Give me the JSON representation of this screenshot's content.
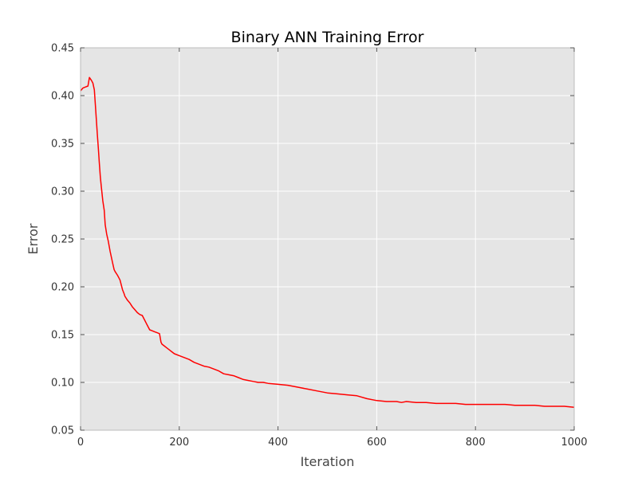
{
  "chart_data": {
    "type": "line",
    "title": "Binary ANN Training Error",
    "xlabel": "Iteration",
    "ylabel": "Error",
    "xlim": [
      0,
      1000
    ],
    "ylim": [
      0.05,
      0.45
    ],
    "xticks": [
      0,
      200,
      400,
      600,
      800,
      1000
    ],
    "xtick_labels": [
      "0",
      "200",
      "400",
      "600",
      "800",
      "1000"
    ],
    "yticks": [
      0.05,
      0.1,
      0.15,
      0.2,
      0.25,
      0.3,
      0.35,
      0.4,
      0.45
    ],
    "ytick_labels": [
      "0.05",
      "0.10",
      "0.15",
      "0.20",
      "0.25",
      "0.30",
      "0.35",
      "0.40",
      "0.45"
    ],
    "grid": true,
    "legend": "none",
    "background_color": "#e5e5e5",
    "grid_color": "#ffffff",
    "series": [
      {
        "color": "#ff0000",
        "x": [
          0,
          5,
          10,
          15,
          18,
          22,
          25,
          28,
          30,
          32,
          34,
          36,
          38,
          40,
          42,
          45,
          48,
          50,
          53,
          56,
          60,
          62,
          65,
          68,
          70,
          75,
          78,
          80,
          85,
          88,
          90,
          95,
          100,
          105,
          110,
          115,
          120,
          125,
          130,
          133,
          137,
          140,
          145,
          150,
          155,
          160,
          163,
          165,
          170,
          175,
          180,
          185,
          190,
          200,
          210,
          220,
          230,
          240,
          250,
          260,
          270,
          280,
          290,
          300,
          310,
          320,
          330,
          340,
          350,
          360,
          370,
          380,
          400,
          420,
          440,
          460,
          480,
          500,
          520,
          540,
          560,
          580,
          600,
          620,
          640,
          650,
          660,
          680,
          700,
          720,
          740,
          760,
          780,
          800,
          820,
          840,
          860,
          880,
          900,
          920,
          940,
          960,
          980,
          1000
        ],
        "y": [
          0.405,
          0.408,
          0.409,
          0.41,
          0.419,
          0.416,
          0.413,
          0.406,
          0.39,
          0.375,
          0.36,
          0.345,
          0.33,
          0.315,
          0.305,
          0.29,
          0.28,
          0.265,
          0.255,
          0.248,
          0.237,
          0.232,
          0.225,
          0.218,
          0.216,
          0.212,
          0.209,
          0.207,
          0.197,
          0.193,
          0.19,
          0.186,
          0.183,
          0.179,
          0.176,
          0.173,
          0.171,
          0.17,
          0.165,
          0.162,
          0.158,
          0.155,
          0.154,
          0.153,
          0.152,
          0.151,
          0.142,
          0.14,
          0.138,
          0.136,
          0.134,
          0.132,
          0.13,
          0.128,
          0.126,
          0.124,
          0.121,
          0.119,
          0.117,
          0.116,
          0.114,
          0.112,
          0.109,
          0.108,
          0.107,
          0.105,
          0.103,
          0.102,
          0.101,
          0.1,
          0.1,
          0.099,
          0.098,
          0.097,
          0.095,
          0.093,
          0.091,
          0.089,
          0.088,
          0.087,
          0.086,
          0.083,
          0.081,
          0.08,
          0.08,
          0.079,
          0.08,
          0.079,
          0.079,
          0.078,
          0.078,
          0.078,
          0.077,
          0.077,
          0.077,
          0.077,
          0.077,
          0.076,
          0.076,
          0.076,
          0.075,
          0.075,
          0.075,
          0.074
        ]
      }
    ]
  }
}
